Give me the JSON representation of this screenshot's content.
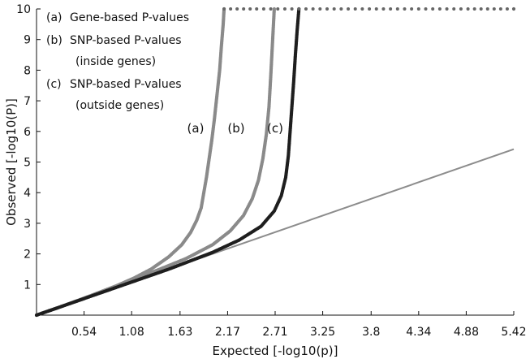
{
  "chart_data": {
    "type": "scatter",
    "title": "",
    "xlabel": "Expected [-log10(p)]",
    "ylabel": "Observed [-log10(P)]",
    "xlim": [
      0,
      5.42
    ],
    "ylim": [
      0,
      10
    ],
    "x_ticks": [
      "0.54",
      "1.08",
      "1.63",
      "2.17",
      "2.71",
      "3.25",
      "3.8",
      "4.34",
      "4.88",
      "5.42"
    ],
    "x_tick_values": [
      0.54,
      1.08,
      1.63,
      2.17,
      2.71,
      3.25,
      3.8,
      4.34,
      4.88,
      5.42
    ],
    "y_ticks": [
      "1",
      "2",
      "3",
      "4",
      "5",
      "6",
      "7",
      "8",
      "9",
      "10"
    ],
    "y_tick_values": [
      1,
      2,
      3,
      4,
      5,
      6,
      7,
      8,
      9,
      10
    ],
    "grid": false,
    "legend_position": "top-left",
    "legend": [
      {
        "label": "(a)",
        "lines": [
          "Gene-based P-values"
        ]
      },
      {
        "label": "(b)",
        "lines": [
          "SNP-based P-values",
          "(inside genes)"
        ]
      },
      {
        "label": "(c)",
        "lines": [
          "SNP-based P-values",
          "(outside genes)"
        ]
      }
    ],
    "reference_line": {
      "x": [
        0,
        5.42
      ],
      "y": [
        0,
        5.42
      ],
      "color": "#8c8c8c"
    },
    "series": [
      {
        "label": "(a)",
        "color": "#8a8a8a",
        "x": [
          0,
          0.3,
          0.6,
          0.9,
          1.1,
          1.3,
          1.5,
          1.65,
          1.75,
          1.82,
          1.87,
          1.9,
          1.93,
          1.96,
          1.99,
          2.02,
          2.05,
          2.08,
          2.1,
          2.12,
          2.13
        ],
        "y": [
          0,
          0.3,
          0.62,
          0.95,
          1.2,
          1.5,
          1.9,
          2.3,
          2.7,
          3.1,
          3.5,
          4.0,
          4.5,
          5.1,
          5.7,
          6.4,
          7.2,
          8.0,
          8.8,
          9.5,
          10
        ]
      },
      {
        "label": "(b)",
        "color": "#8a8a8a",
        "x": [
          0,
          0.5,
          1.0,
          1.4,
          1.7,
          2.0,
          2.2,
          2.35,
          2.45,
          2.52,
          2.57,
          2.61,
          2.64,
          2.66,
          2.68,
          2.7
        ],
        "y": [
          0,
          0.5,
          1.05,
          1.5,
          1.85,
          2.3,
          2.75,
          3.25,
          3.8,
          4.4,
          5.1,
          5.9,
          6.8,
          7.8,
          8.9,
          10
        ]
      },
      {
        "label": "(c)",
        "color": "#1e1e1e",
        "x": [
          0,
          0.5,
          1.0,
          1.5,
          2.0,
          2.3,
          2.55,
          2.7,
          2.78,
          2.83,
          2.86,
          2.88,
          2.9,
          2.92,
          2.94,
          2.96,
          2.98
        ],
        "y": [
          0,
          0.5,
          1.0,
          1.5,
          2.05,
          2.45,
          2.9,
          3.4,
          3.9,
          4.5,
          5.2,
          6.0,
          6.8,
          7.6,
          8.5,
          9.3,
          10
        ]
      },
      {
        "label": "capped",
        "color": "#666666",
        "x": [
          2.13,
          2.5,
          2.9,
          3.3,
          3.7,
          4.1,
          4.5,
          4.9,
          5.42
        ],
        "y": [
          10,
          10,
          10,
          10,
          10,
          10,
          10,
          10,
          10
        ]
      }
    ]
  }
}
